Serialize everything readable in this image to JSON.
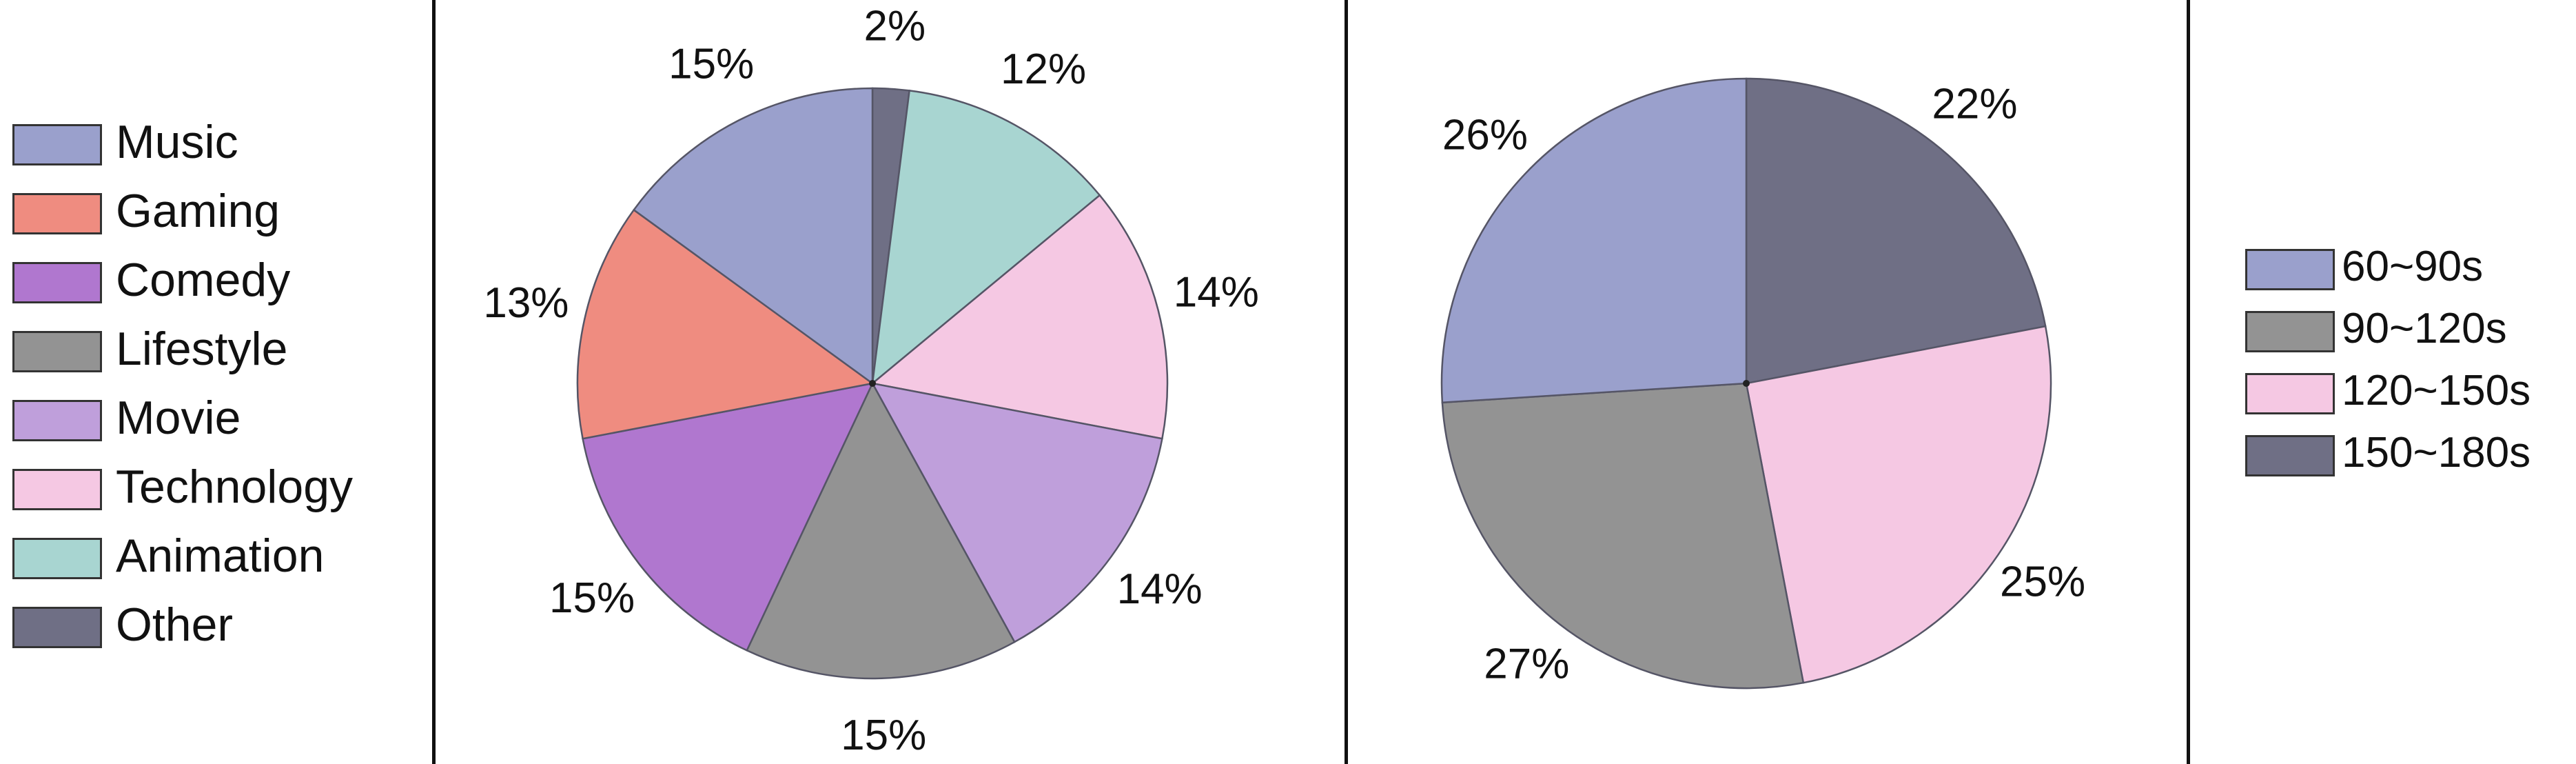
{
  "chart_data": [
    {
      "type": "pie",
      "slices": [
        {
          "label": "Other",
          "value": 2,
          "display": "2%",
          "color": "#6f6f85"
        },
        {
          "label": "Animation",
          "value": 12,
          "display": "12%",
          "color": "#a8d5d1"
        },
        {
          "label": "Technology",
          "value": 14,
          "display": "14%",
          "color": "#f5c8e3"
        },
        {
          "label": "Movie",
          "value": 14,
          "display": "14%",
          "color": "#bf9fdb"
        },
        {
          "label": "Lifestyle",
          "value": 15,
          "display": "15%",
          "color": "#939393"
        },
        {
          "label": "Comedy",
          "value": 15,
          "display": "15%",
          "color": "#b077cf"
        },
        {
          "label": "Gaming",
          "value": 13,
          "display": "13%",
          "color": "#ef8c80"
        },
        {
          "label": "Music",
          "value": 15,
          "display": "15%",
          "color": "#9aa0cc"
        }
      ],
      "legend": {
        "position": "left",
        "entries": [
          {
            "label": "Music",
            "color": "#9aa0cc"
          },
          {
            "label": "Gaming",
            "color": "#ef8c80"
          },
          {
            "label": "Comedy",
            "color": "#b077cf"
          },
          {
            "label": "Lifestyle",
            "color": "#939393"
          },
          {
            "label": "Movie",
            "color": "#bf9fdb"
          },
          {
            "label": "Technology",
            "color": "#f5c8e3"
          },
          {
            "label": "Animation",
            "color": "#a8d5d1"
          },
          {
            "label": "Other",
            "color": "#6f6f85"
          }
        ]
      }
    },
    {
      "type": "pie",
      "slices": [
        {
          "label": "150~180s",
          "value": 22,
          "display": "22%",
          "color": "#6f6f85"
        },
        {
          "label": "120~150s",
          "value": 25,
          "display": "25%",
          "color": "#f5c8e3"
        },
        {
          "label": "90~120s",
          "value": 27,
          "display": "27%",
          "color": "#939393"
        },
        {
          "label": "60~90s",
          "value": 26,
          "display": "26%",
          "color": "#9aa0cc"
        }
      ],
      "legend": {
        "position": "right",
        "entries": [
          {
            "label": "60~90s",
            "color": "#9aa0cc"
          },
          {
            "label": "90~120s",
            "color": "#939393"
          },
          {
            "label": "120~150s",
            "color": "#f5c8e3"
          },
          {
            "label": "150~180s",
            "color": "#6f6f85"
          }
        ]
      }
    }
  ]
}
